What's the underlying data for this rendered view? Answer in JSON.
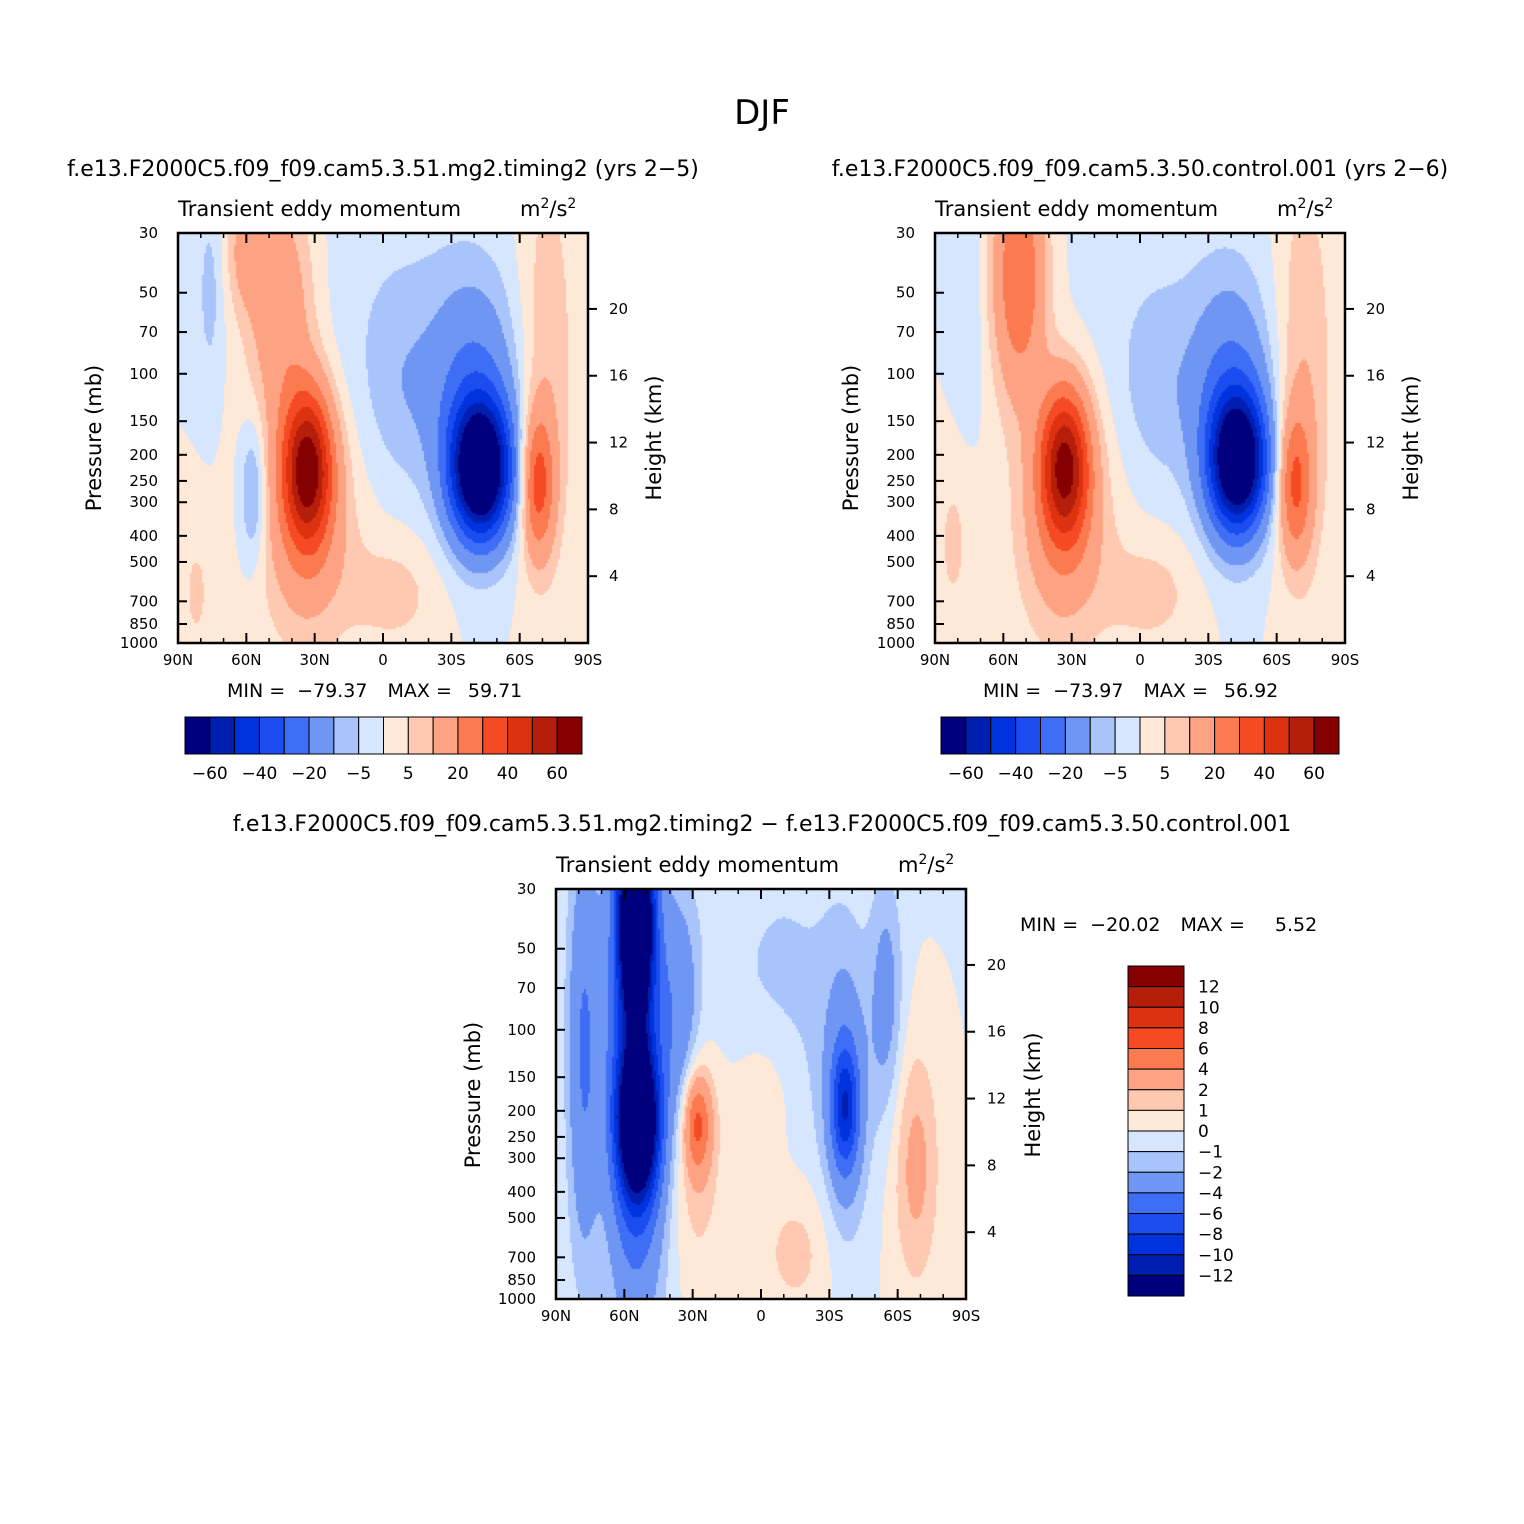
{
  "figure": {
    "title": "DJF"
  },
  "colors": {
    "colormap": [
      "#00007f",
      "#001fb0",
      "#0033dd",
      "#1a4cf0",
      "#3e6ef5",
      "#6f96f2",
      "#a9c3fb",
      "#d5e6fe",
      "#fee8d8",
      "#fec9b0",
      "#fda383",
      "#fb7a50",
      "#f54a23",
      "#dd3210",
      "#b51e0a",
      "#850000"
    ]
  },
  "chart_data": [
    {
      "type": "heatmap",
      "subtitle": "f.e13.F2000C5.f09_f09.cam5.3.51.mg2.timing2 (yrs 2−5)",
      "title": "Transient eddy momentum",
      "units_base": "m",
      "units_mid": "/s",
      "units_sup": "2",
      "ylabel": "Pressure (mb)",
      "y2label": "Height (km)",
      "x_ticks": [
        "90N",
        "60N",
        "30N",
        "0",
        "30S",
        "60S",
        "90S"
      ],
      "x_values": [
        90,
        60,
        30,
        0,
        -30,
        -60,
        -90
      ],
      "p_ticks": [
        30,
        50,
        70,
        100,
        150,
        200,
        250,
        300,
        400,
        500,
        700,
        850,
        1000
      ],
      "h_ticks": [
        20,
        16,
        12,
        8,
        4
      ],
      "ylim": [
        1000,
        30
      ],
      "min_label": "MIN =",
      "min": "−79.37",
      "max_label": "MAX =",
      "max": "59.71",
      "levels": [
        -70,
        -60,
        -50,
        -40,
        -30,
        -20,
        -10,
        -5,
        0,
        5,
        10,
        20,
        30,
        40,
        50,
        60,
        70
      ],
      "colorbar_labels": [
        "−60",
        "−40",
        "−20",
        "−5",
        "5",
        "20",
        "40",
        "60"
      ],
      "features": [
        {
          "lat": -43,
          "p": 250,
          "value": -79.37
        },
        {
          "lat": 32,
          "p": 240,
          "value": 59.71
        },
        {
          "lat": -68,
          "p": 300,
          "value": 32
        },
        {
          "lat": 58,
          "p": 300,
          "value": -15
        },
        {
          "lat": 58,
          "p": 28,
          "value": 12
        }
      ]
    },
    {
      "type": "heatmap",
      "subtitle": "f.e13.F2000C5.f09_f09.cam5.3.50.control.001 (yrs 2−6)",
      "title": "Transient eddy momentum",
      "units_base": "m",
      "units_mid": "/s",
      "units_sup": "2",
      "ylabel": "Pressure (mb)",
      "y2label": "Height (km)",
      "x_ticks": [
        "90N",
        "60N",
        "30N",
        "0",
        "30S",
        "60S",
        "90S"
      ],
      "x_values": [
        90,
        60,
        30,
        0,
        -30,
        -60,
        -90
      ],
      "p_ticks": [
        30,
        50,
        70,
        100,
        150,
        200,
        250,
        300,
        400,
        500,
        700,
        850,
        1000
      ],
      "h_ticks": [
        20,
        16,
        12,
        8,
        4
      ],
      "ylim": [
        1000,
        30
      ],
      "min_label": "MIN =",
      "min": "−73.97",
      "max_label": "MAX =",
      "max": "56.92",
      "levels": [
        -70,
        -60,
        -50,
        -40,
        -30,
        -20,
        -10,
        -5,
        0,
        5,
        10,
        20,
        30,
        40,
        50,
        60,
        70
      ],
      "colorbar_labels": [
        "−60",
        "−40",
        "−20",
        "−5",
        "5",
        "20",
        "40",
        "60"
      ],
      "features": [
        {
          "lat": -43,
          "p": 240,
          "value": -73.97
        },
        {
          "lat": 32,
          "p": 230,
          "value": 56.92
        },
        {
          "lat": -68,
          "p": 300,
          "value": 28
        },
        {
          "lat": 55,
          "p": 28,
          "value": 35
        }
      ]
    },
    {
      "type": "heatmap",
      "subtitle": "f.e13.F2000C5.f09_f09.cam5.3.51.mg2.timing2 − f.e13.F2000C5.f09_f09.cam5.3.50.control.001",
      "title": "Transient eddy momentum",
      "units_base": "m",
      "units_mid": "/s",
      "units_sup": "2",
      "ylabel": "Pressure (mb)",
      "y2label": "Height (km)",
      "x_ticks": [
        "90N",
        "60N",
        "30N",
        "0",
        "30S",
        "60S",
        "90S"
      ],
      "x_values": [
        90,
        60,
        30,
        0,
        -30,
        -60,
        -90
      ],
      "p_ticks": [
        30,
        50,
        70,
        100,
        150,
        200,
        250,
        300,
        400,
        500,
        700,
        850,
        1000
      ],
      "h_ticks": [
        20,
        16,
        12,
        8,
        4
      ],
      "ylim": [
        1000,
        30
      ],
      "min_label": "MIN =",
      "min": "−20.02",
      "max_label": "MAX =",
      "max": "5.52",
      "levels": [
        -14,
        -12,
        -10,
        -8,
        -6,
        -4,
        -2,
        -1,
        0,
        1,
        2,
        4,
        6,
        8,
        10,
        12,
        14
      ],
      "colorbar_labels": [
        "12",
        "10",
        "8",
        "6",
        "4",
        "2",
        "1",
        "0",
        "−1",
        "−2",
        "−4",
        "−6",
        "−8",
        "−10",
        "−12"
      ],
      "features": [
        {
          "lat": 55,
          "p": 35,
          "value": -20.02
        },
        {
          "lat": 54,
          "p": 260,
          "value": -16
        },
        {
          "lat": 28,
          "p": 270,
          "value": 5.52
        },
        {
          "lat": -37,
          "p": 230,
          "value": -7
        },
        {
          "lat": -68,
          "p": 350,
          "value": 2.5
        }
      ]
    }
  ]
}
